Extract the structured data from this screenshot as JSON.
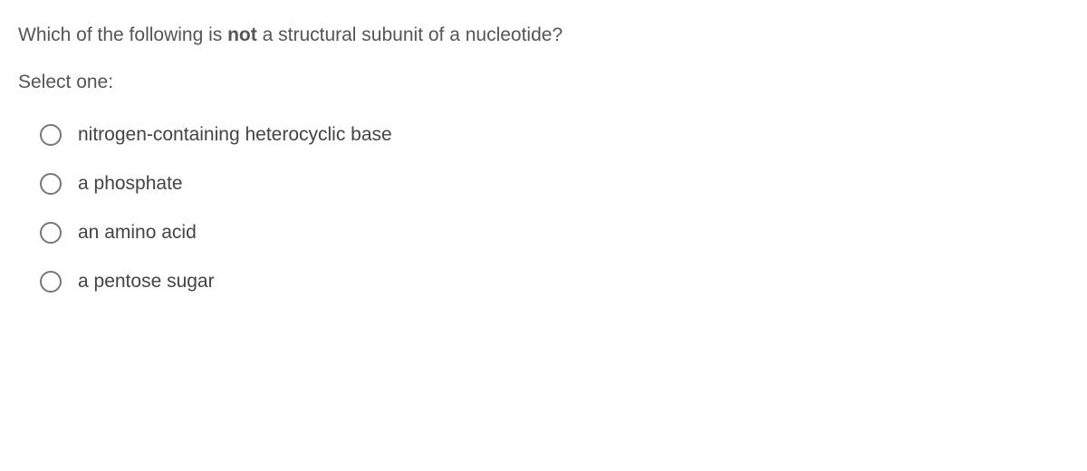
{
  "question": {
    "prefix": "Which of the following is ",
    "emphasis": "not",
    "suffix": " a structural subunit of a nucleotide?",
    "text_color": "#555555",
    "font_size": 21
  },
  "prompt": {
    "text": "Select one:",
    "text_color": "#555555",
    "font_size": 21
  },
  "options": [
    {
      "label": "nitrogen-containing heterocyclic base",
      "selected": false
    },
    {
      "label": "a phosphate",
      "selected": false
    },
    {
      "label": "an amino acid",
      "selected": false
    },
    {
      "label": "a pentose sugar",
      "selected": false
    }
  ],
  "styling": {
    "background_color": "#ffffff",
    "radio_border_color": "#777777",
    "radio_size": 24,
    "option_text_color": "#444444",
    "option_font_size": 21,
    "option_spacing": 30,
    "options_left_indent": 24
  }
}
